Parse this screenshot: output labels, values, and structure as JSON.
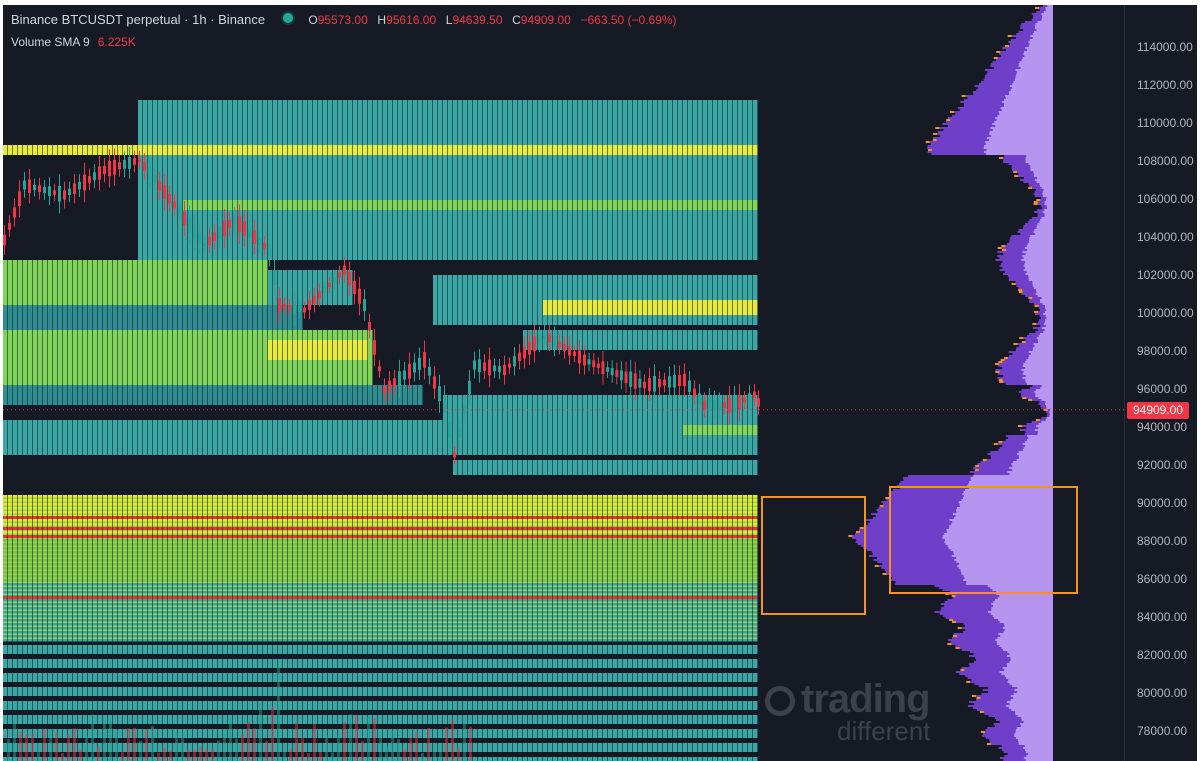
{
  "header": {
    "symbol": "Binance BTCUSDT perpetual · 1h · Binance",
    "open_label": "O",
    "open_value": "95573.00",
    "high_label": "H",
    "high_value": "95616.00",
    "low_label": "L",
    "low_value": "94639.50",
    "close_label": "C",
    "close_value": "94909.00",
    "change_value": "−663.50 (−0.69%)"
  },
  "indicator": {
    "name": "Volume SMA 9",
    "value": "6.225K"
  },
  "price_axis": {
    "ticks": [
      "114000.00",
      "112000.00",
      "110000.00",
      "108000.00",
      "106000.00",
      "104000.00",
      "102000.00",
      "100000.00",
      "98000.00",
      "96000.00",
      "94000.00",
      "92000.00",
      "90000.00",
      "88000.00",
      "86000.00",
      "84000.00",
      "82000.00",
      "80000.00",
      "78000.00"
    ],
    "current_price": "94909.00"
  },
  "watermark": {
    "line1": "trading",
    "line2": "different"
  },
  "colors": {
    "background": "#161a25",
    "up": "#26a69a",
    "down": "#f23645",
    "highlight_box": "#f7931a",
    "profile": "#a05cf0"
  }
}
